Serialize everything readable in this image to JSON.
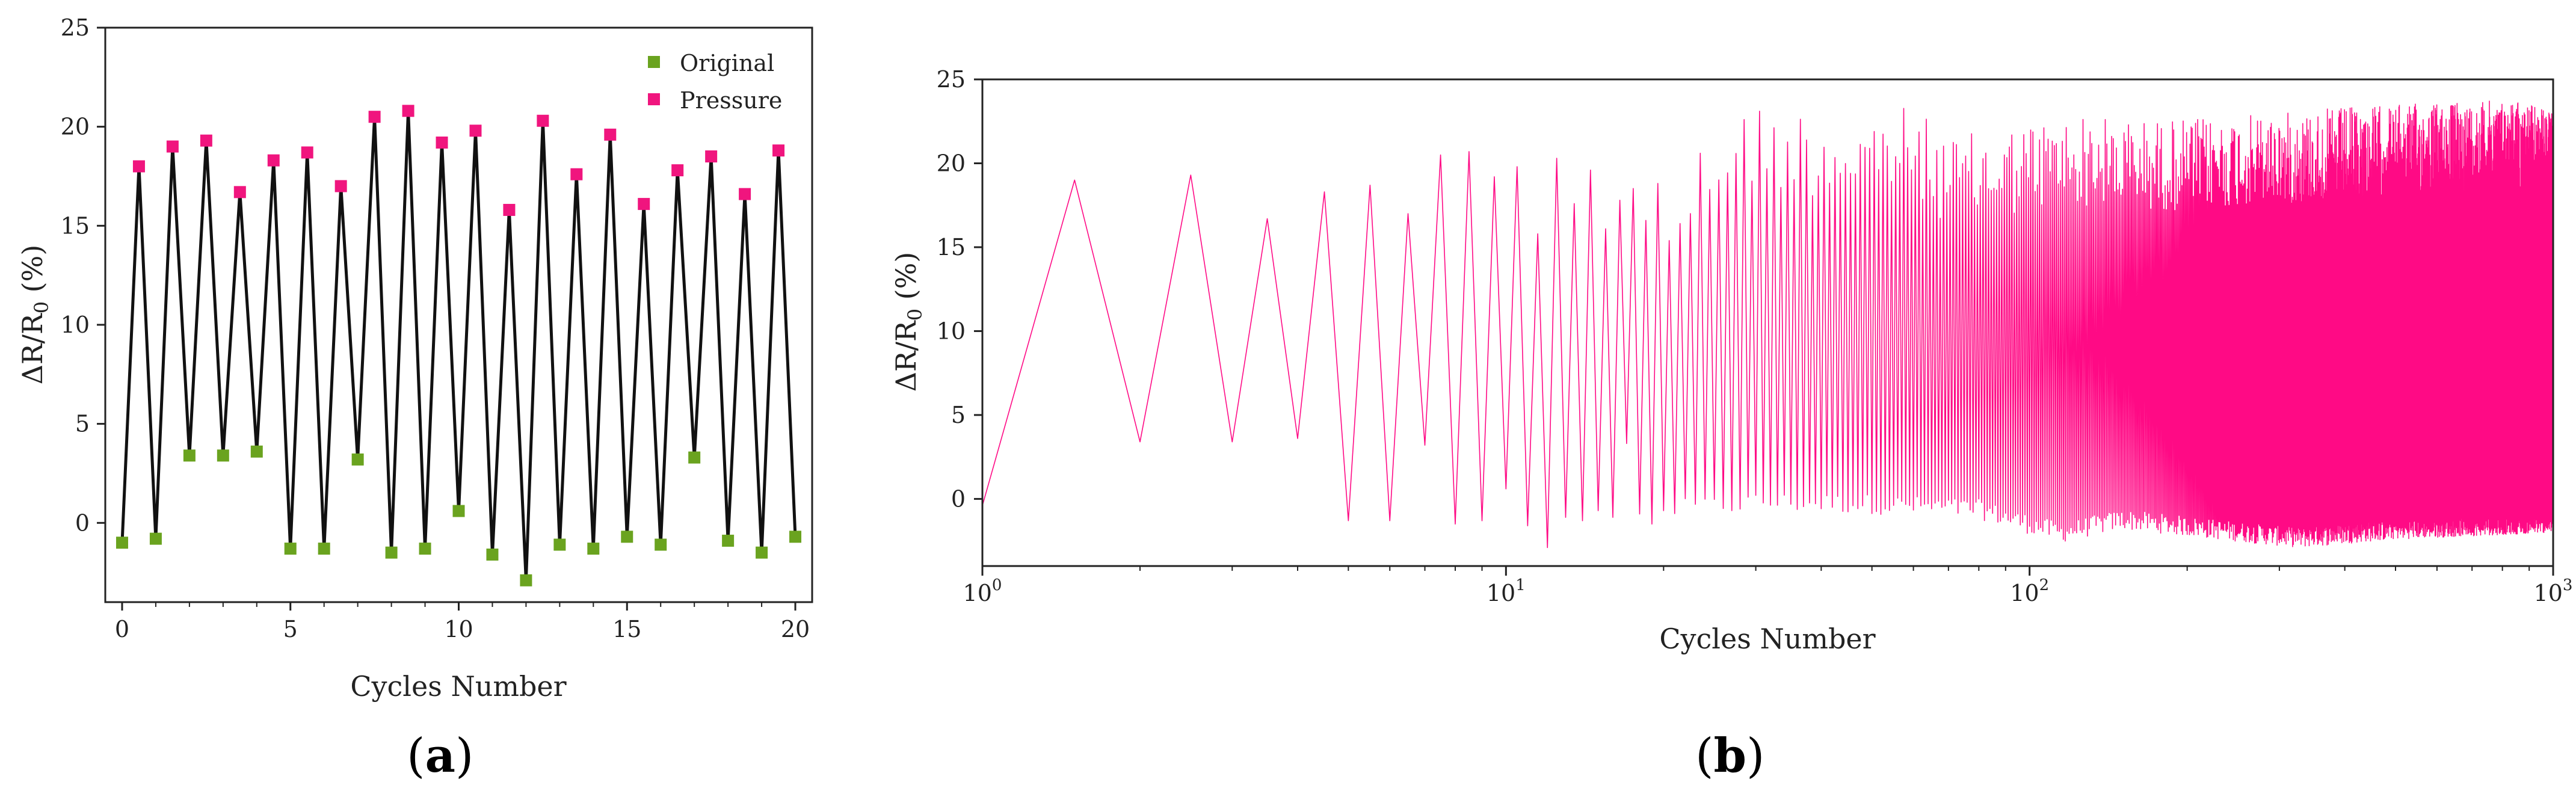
{
  "chart_data": [
    {
      "type": "line",
      "panel_label": "a",
      "xlabel": "Cycles Number",
      "ylabel": "ΔR/R₀ (%)",
      "xlim": [
        -0.5,
        20.5
      ],
      "ylim": [
        -4,
        25
      ],
      "xticks": [
        0,
        5,
        10,
        15,
        20
      ],
      "yticks": [
        0,
        5,
        10,
        15,
        20,
        25
      ],
      "x_tick_labels": [
        "0",
        "5",
        "10",
        "15",
        "20"
      ],
      "y_tick_labels": [
        "0",
        "5",
        "10",
        "15",
        "20",
        "25"
      ],
      "legend": {
        "placement": "top-right",
        "entries": [
          "Original",
          "Pressure"
        ]
      },
      "colors": {
        "line": "#111111",
        "original": "#6aa31f",
        "pressure": "#f0157e"
      },
      "series": [
        {
          "name": "Original",
          "x": [
            0,
            1,
            2,
            3,
            4,
            5,
            6,
            7,
            8,
            9,
            10,
            11,
            12,
            13,
            14,
            15,
            16,
            17,
            18,
            19,
            20
          ],
          "values": [
            -1.0,
            -0.8,
            3.4,
            3.4,
            3.6,
            -1.3,
            -1.3,
            3.2,
            -1.5,
            -1.3,
            0.6,
            -1.6,
            -2.9,
            -1.1,
            -1.3,
            -0.7,
            -1.1,
            3.3,
            -0.9,
            -1.5,
            -0.7
          ]
        },
        {
          "name": "Pressure",
          "x": [
            0.5,
            1.5,
            2.5,
            3.5,
            4.5,
            5.5,
            6.5,
            7.5,
            8.5,
            9.5,
            10.5,
            11.5,
            12.5,
            13.5,
            14.5,
            15.5,
            16.5,
            17.5,
            18.5,
            19.5
          ],
          "values": [
            18.0,
            19.0,
            19.3,
            16.7,
            18.3,
            18.7,
            17.0,
            20.5,
            20.8,
            19.2,
            19.8,
            15.8,
            20.3,
            17.6,
            19.6,
            16.1,
            17.8,
            18.5,
            16.6,
            18.8
          ]
        }
      ]
    },
    {
      "type": "line",
      "panel_label": "b",
      "xlabel": "Cycles Number",
      "ylabel": "ΔR/R₀ (%)",
      "xscale": "log",
      "xlim": [
        1,
        1000
      ],
      "ylim": [
        -4,
        25
      ],
      "xticks": [
        1,
        10,
        100,
        1000
      ],
      "yticks": [
        0,
        5,
        10,
        15,
        20,
        25
      ],
      "x_tick_labels": [
        {
          "base": "10",
          "exp": "0"
        },
        {
          "base": "10",
          "exp": "1"
        },
        {
          "base": "10",
          "exp": "2"
        },
        {
          "base": "10",
          "exp": "3"
        }
      ],
      "y_tick_labels": [
        "0",
        "5",
        "10",
        "15",
        "20",
        "25"
      ],
      "colors": {
        "line": "#ff0a85"
      },
      "series": [
        {
          "peaks": [
            [
              1.5,
              19.0
            ],
            [
              2.5,
              19.3
            ],
            [
              3.5,
              16.7
            ],
            [
              4.5,
              18.3
            ],
            [
              5.5,
              18.7
            ],
            [
              6.5,
              17.0
            ],
            [
              7.5,
              20.5
            ],
            [
              8.5,
              20.7
            ],
            [
              9.5,
              19.2
            ],
            [
              10.5,
              19.8
            ],
            [
              11.5,
              15.8
            ],
            [
              12.5,
              20.3
            ],
            [
              13.5,
              17.6
            ],
            [
              14.5,
              19.6
            ],
            [
              15.5,
              16.1
            ],
            [
              16.5,
              17.8
            ],
            [
              17.5,
              18.5
            ],
            [
              18.5,
              16.6
            ],
            [
              19.5,
              18.8
            ],
            [
              20.5,
              19.0
            ],
            [
              26.5,
              23.8
            ],
            [
              31.5,
              23.7
            ],
            [
              45.5,
              23.2
            ],
            [
              58.5,
              23.4
            ],
            [
              72.5,
              21.6
            ],
            [
              90.5,
              22.3
            ],
            [
              120.5,
              22.9
            ],
            [
              160.5,
              22.6
            ],
            [
              220.5,
              22.7
            ],
            [
              300.5,
              23.0
            ],
            [
              420.5,
              23.4
            ],
            [
              600.5,
              23.6
            ],
            [
              850.5,
              23.8
            ],
            [
              990.5,
              23.1
            ]
          ],
          "valleys": [
            [
              1,
              -0.4
            ],
            [
              2,
              3.4
            ],
            [
              3,
              3.4
            ],
            [
              4,
              3.6
            ],
            [
              5,
              -1.3
            ],
            [
              6,
              -1.3
            ],
            [
              7,
              3.2
            ],
            [
              8,
              -1.5
            ],
            [
              9,
              -1.3
            ],
            [
              10,
              0.6
            ],
            [
              11,
              -1.6
            ],
            [
              12,
              -2.9
            ],
            [
              13,
              -1.1
            ],
            [
              14,
              -1.3
            ],
            [
              15,
              -0.7
            ],
            [
              16,
              -1.1
            ],
            [
              17,
              3.3
            ],
            [
              18,
              -0.9
            ],
            [
              19,
              -1.5
            ],
            [
              20,
              -0.7
            ],
            [
              30,
              -0.2
            ],
            [
              50,
              -0.3
            ],
            [
              80,
              -0.6
            ],
            [
              100,
              -1.5
            ],
            [
              115,
              -2.0
            ],
            [
              150,
              -1.2
            ],
            [
              300,
              -2.2
            ],
            [
              330,
              -2.3
            ],
            [
              500,
              -1.8
            ],
            [
              1000,
              -1.4
            ]
          ]
        }
      ]
    }
  ]
}
